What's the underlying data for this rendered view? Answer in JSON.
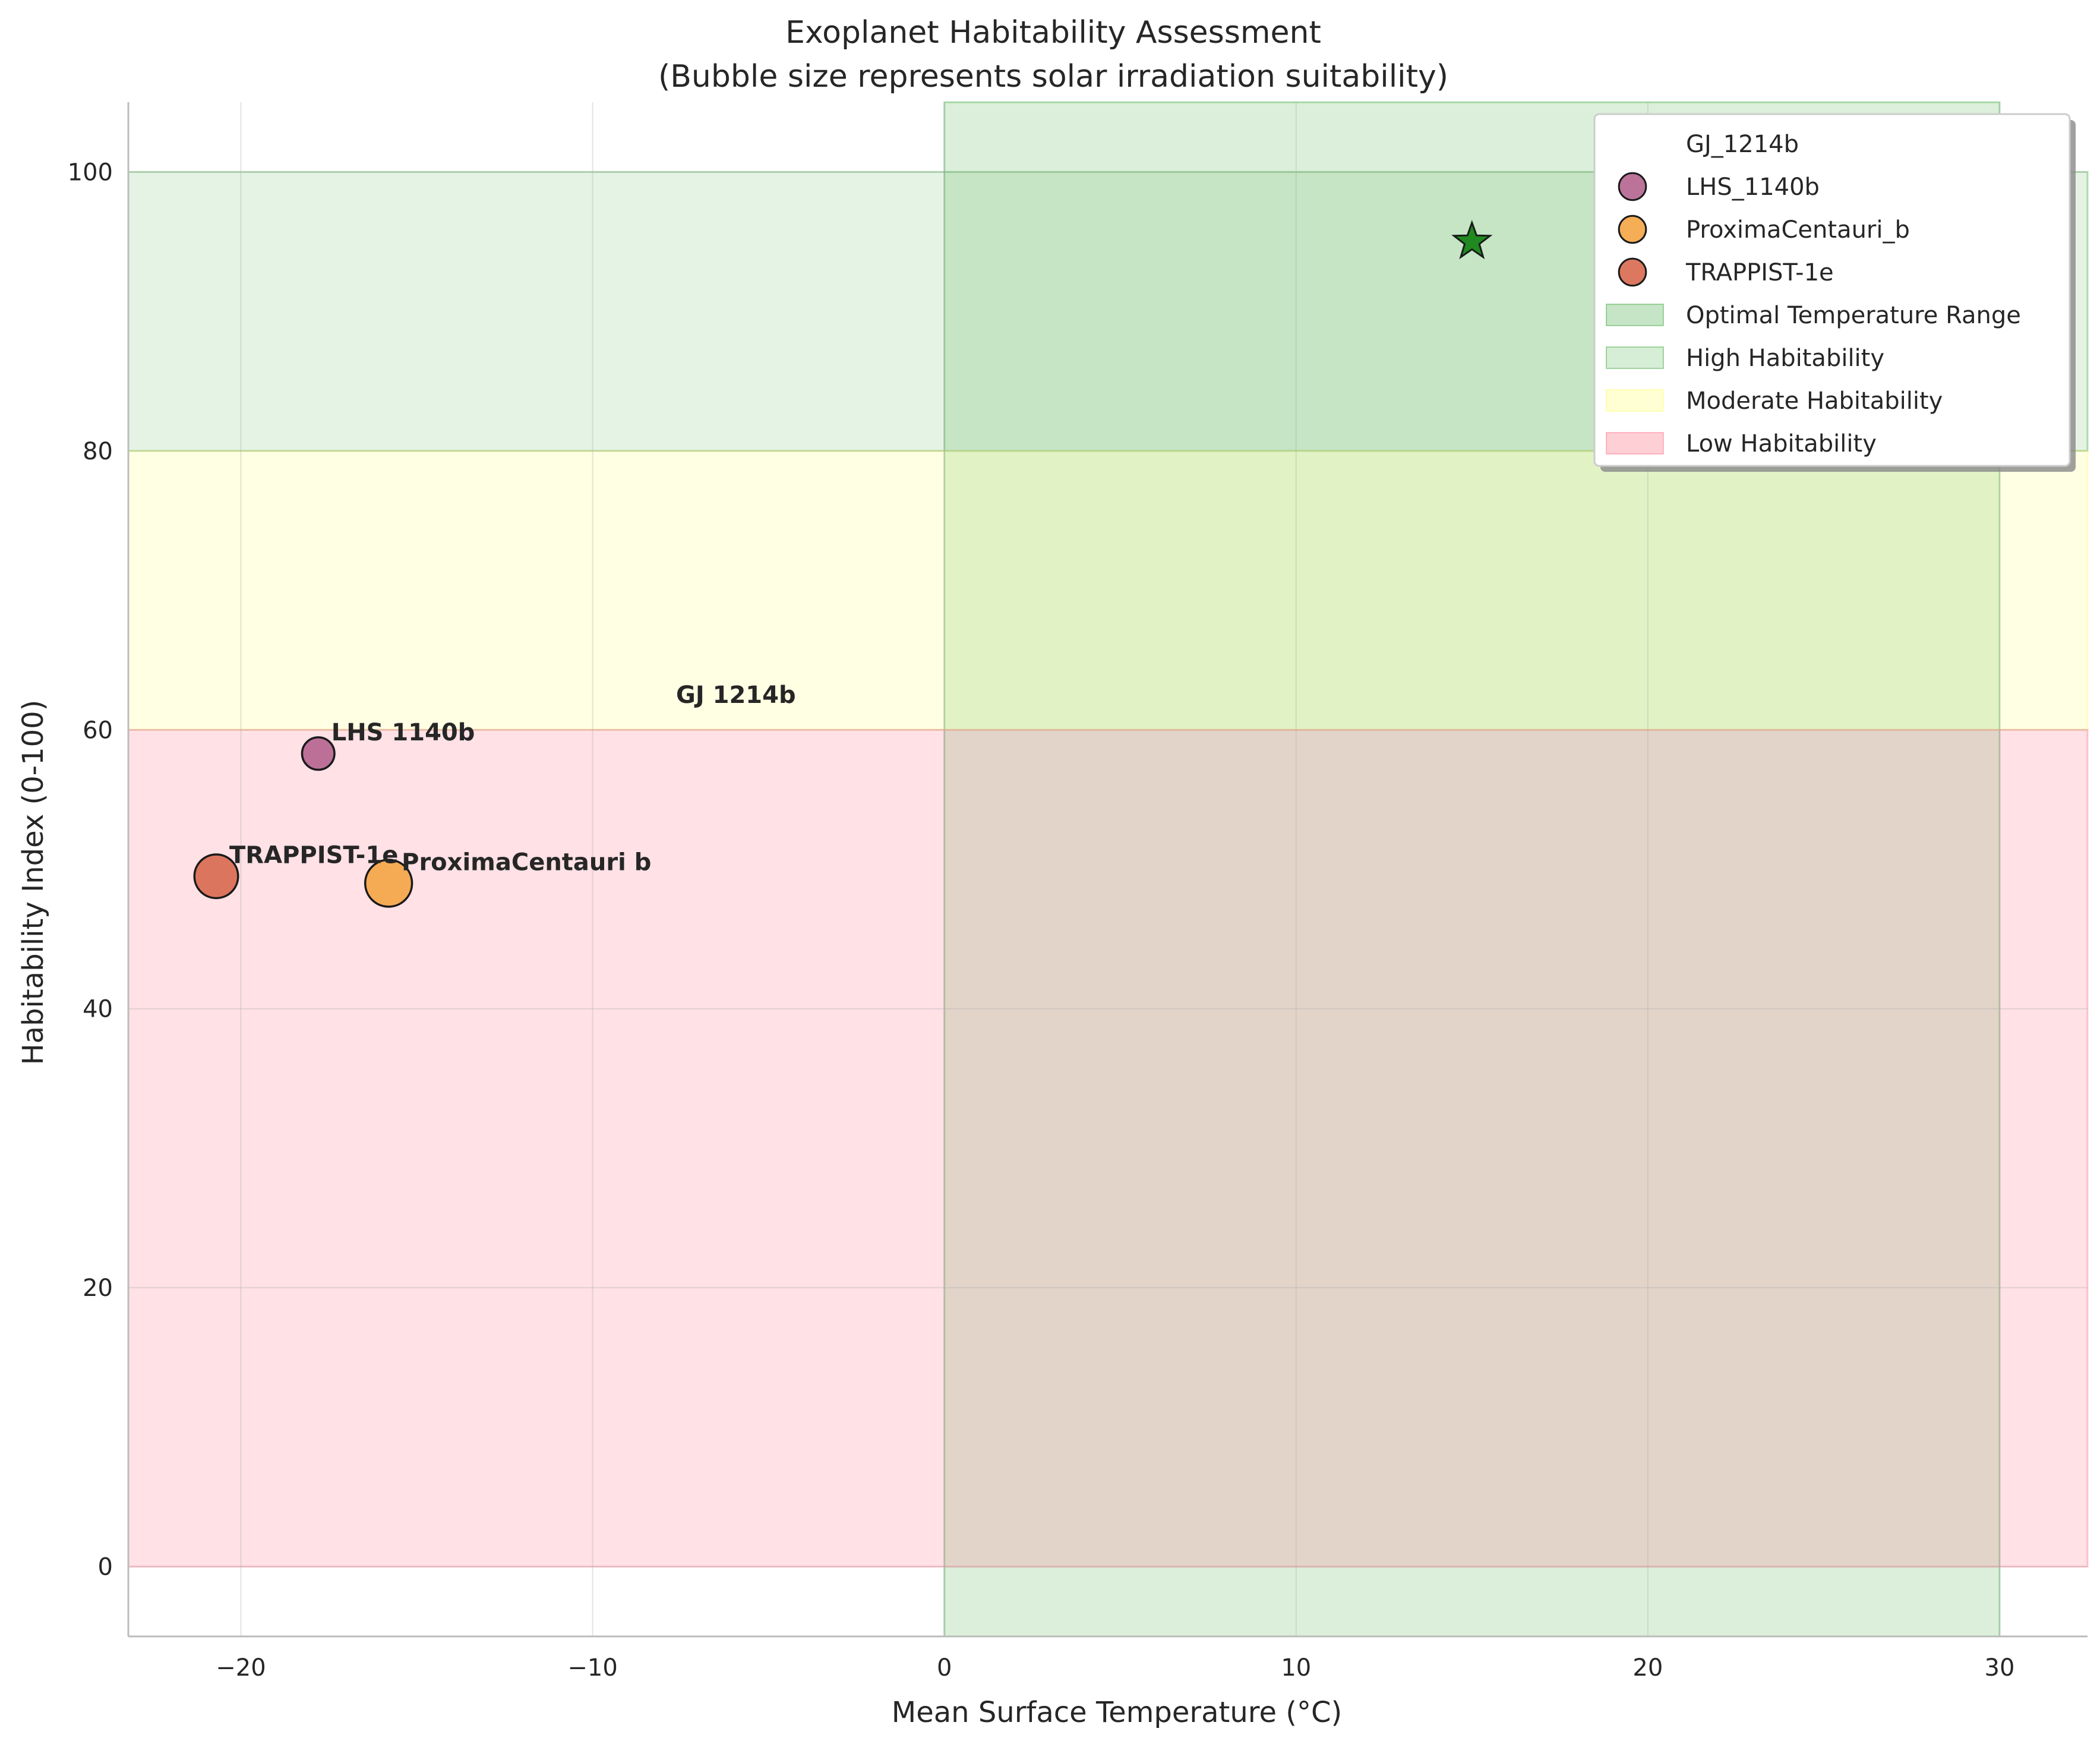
{
  "chart_data": {
    "type": "scatter",
    "title": "Exoplanet Habitability Assessment\n(Bubble size represents solar irradiation suitability)",
    "title_lines": [
      "Exoplanet Habitability Assessment",
      "(Bubble size represents solar irradiation suitability)"
    ],
    "xlabel": "Mean Surface Temperature (°C)",
    "ylabel": "Habitability Index (0-100)",
    "xlim": [
      -23.2,
      32.5
    ],
    "ylim": [
      -5,
      105
    ],
    "xticks": [
      -20,
      -10,
      0,
      10,
      20,
      30
    ],
    "xtick_labels": [
      "−20",
      "−10",
      "0",
      "10",
      "20",
      "30"
    ],
    "yticks": [
      0,
      20,
      40,
      60,
      80,
      100
    ],
    "ytick_labels": [
      "0",
      "20",
      "40",
      "60",
      "80",
      "100"
    ],
    "grid": true,
    "legend_position": "top-right",
    "points": [
      {
        "legend": "GJ_1214b",
        "label": "GJ 1214b",
        "x": -8,
        "y": 61,
        "size": 0,
        "color": "#3a7d44",
        "marker": "none"
      },
      {
        "legend": "LHS_1140b",
        "label": "LHS 1140b",
        "x": -17.8,
        "y": 58.3,
        "size": 110,
        "color": "#b5648f",
        "marker": "circle"
      },
      {
        "legend": "ProximaCentauri_b",
        "label": "ProximaCentauri b",
        "x": -15.8,
        "y": 49,
        "size": 230,
        "color": "#f4a444",
        "marker": "circle"
      },
      {
        "legend": "TRAPPIST-1e",
        "label": "TRAPPIST-1e",
        "x": -20.7,
        "y": 49.5,
        "size": 200,
        "color": "#d8694f",
        "marker": "circle"
      }
    ],
    "reference_marker": {
      "x": 15,
      "y": 95,
      "marker": "star",
      "color": "#1f8a1f"
    },
    "regions": [
      {
        "name": "Optimal Temperature Range",
        "axis": "x",
        "from": 0,
        "to": 30,
        "color": "#2ca02c",
        "opacity": 0.17
      },
      {
        "name": "High Habitability",
        "axis": "y",
        "from": 80,
        "to": 100,
        "color": "#2ca02c",
        "opacity": 0.12
      },
      {
        "name": "Moderate Habitability",
        "axis": "y",
        "from": 60,
        "to": 80,
        "color": "#ffff66",
        "opacity": 0.18
      },
      {
        "name": "Low Habitability",
        "axis": "y",
        "from": 0,
        "to": 60,
        "color": "#ff6b81",
        "opacity": 0.2
      }
    ]
  }
}
